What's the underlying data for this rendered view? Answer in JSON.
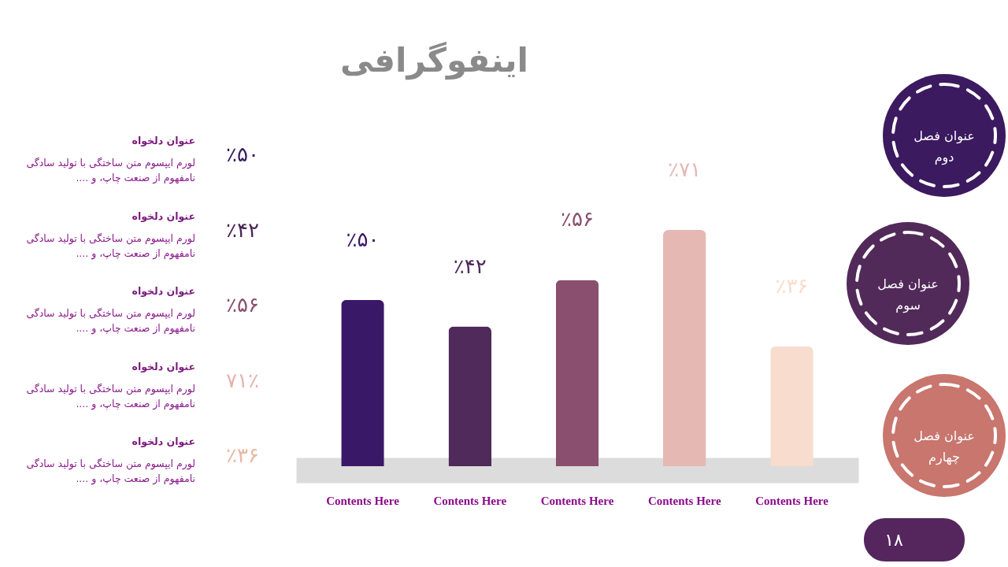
{
  "chart_data": [
    {
      "type": "bar",
      "title": "اینفوگرافی",
      "categories": [
        "Contents Here",
        "Contents Here",
        "Contents Here",
        "Contents Here",
        "Contents Here"
      ],
      "values": [
        50,
        42,
        56,
        71,
        36
      ],
      "colors": [
        "#3a1868",
        "#4f2a5a",
        "#8a4f6e",
        "#e6b8b4",
        "#f8dccd"
      ],
      "value_labels": [
        "٪۵۰",
        "٪۴۲",
        "٪۵۶",
        "٪۷۱",
        "٪۳۶"
      ]
    },
    {
      "type": "other",
      "annotations": [
        "عنوان دلخواه",
        "لورم ایپسوم متن ساختگی با تولید سادگی",
        "نامفهوم از صنعت چاپ، و ....",
        "٪۵۰",
        "عنوان دلخواه",
        "لورم ایپسوم متن ساختگی با تولید سادگی",
        "نامفهوم از صنعت چاپ، و ....",
        "٪۴۲",
        "عنوان دلخواه",
        "لورم ایپسوم متن ساختگی با تولید سادگی",
        "نامفهوم از صنعت چاپ، و ....",
        "٪۵۶",
        "عنوان دلخواه",
        "لورم ایپسوم متن ساختگی با تولید سادگی",
        "نامفهوم از صنعت چاپ، و ....",
        "۷۱٪",
        "عنوان دلخواه",
        "لورم ایپسوم متن ساختگی با تولید سادگی",
        "نامفهوم از صنعت چاپ، و ....",
        "٪۳۶"
      ],
      "colors": [
        "#3a1a5c",
        "#4a2558",
        "#8a5070",
        "#e5b3ab",
        "#eab7a2"
      ]
    },
    {
      "type": "other",
      "annotations": [
        "عنوان فصل دوم",
        "عنوان فصل سوم",
        "عنوان فصل چهارم",
        "۱۸"
      ],
      "colors": [
        "#3b1a60",
        "#522a5a",
        "#c8766e",
        "#55265e"
      ]
    }
  ]
}
